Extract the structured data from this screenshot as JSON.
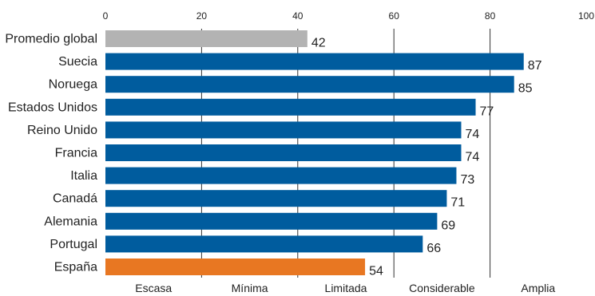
{
  "chart_data": {
    "type": "bar",
    "orientation": "horizontal",
    "title": "",
    "xlabel": "",
    "ylabel": "",
    "xlim": [
      0,
      100
    ],
    "x_ticks": [
      "0",
      "20",
      "40",
      "60",
      "80",
      "100"
    ],
    "x_tick_values": [
      0,
      20,
      40,
      60,
      80,
      100
    ],
    "grid": "vertical lines at 20, 40, 60, 80",
    "bands": [
      "Escasa",
      "Mínima",
      "Limitada",
      "Considerable",
      "Amplia"
    ],
    "categories": [
      "Promedio global",
      "Suecia",
      "Noruega",
      "Estados Unidos",
      "Reino Unido",
      "Francia",
      "Italia",
      "Canadá",
      "Alemania",
      "Portugal",
      "España"
    ],
    "values": [
      42,
      87,
      85,
      77,
      74,
      74,
      73,
      71,
      69,
      66,
      54
    ],
    "value_labels": [
      "42",
      "87",
      "85",
      "77",
      "74",
      "74",
      "73",
      "71",
      "69",
      "66",
      "54"
    ],
    "colors": [
      "#b3b3b3",
      "#005c9e",
      "#005c9e",
      "#005c9e",
      "#005c9e",
      "#005c9e",
      "#005c9e",
      "#005c9e",
      "#005c9e",
      "#005c9e",
      "#e87722"
    ],
    "grid_color": "#333333",
    "text_color": "#222222"
  }
}
